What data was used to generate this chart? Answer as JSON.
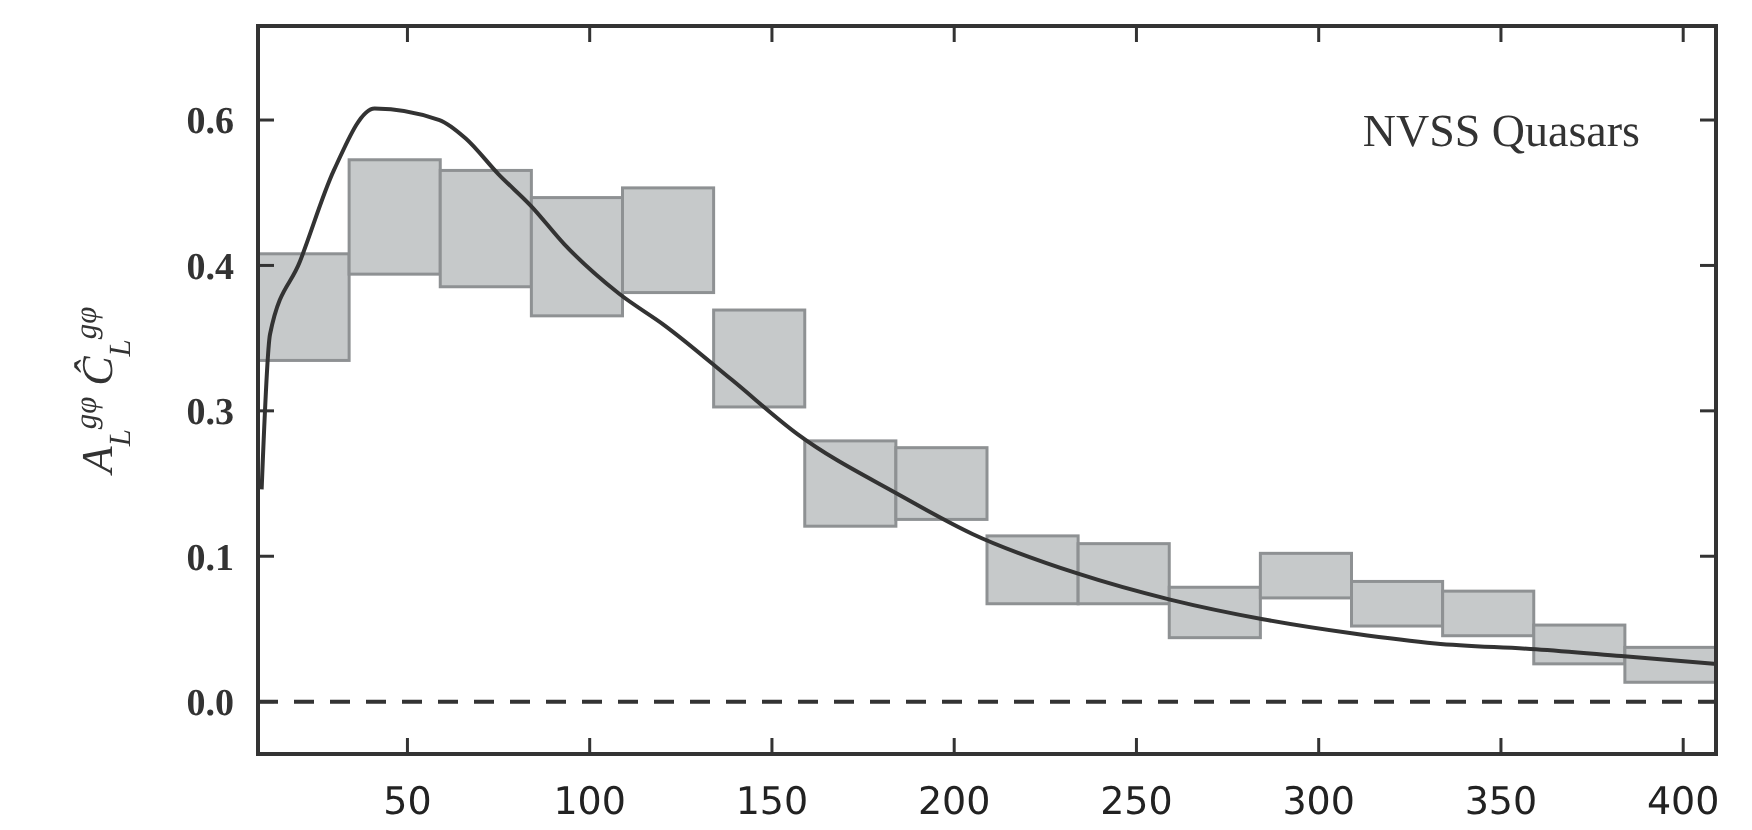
{
  "chart_data": {
    "type": "bar",
    "ylabel": "A$_{L}$$^{gφ}$ Ĉ$_{L}$$^{gφ}$",
    "xlim": [
      9,
      409
    ],
    "xticks": [
      50,
      100,
      150,
      200,
      250,
      300,
      350,
      400
    ],
    "ylim": [
      -0.054,
      0.697
    ],
    "yticks": [
      {
        "value": 0,
        "label": "0.0"
      },
      {
        "value": 0.15,
        "label": "0.1"
      },
      0.3,
      {
        "value": 0.45,
        "label": "0.4"
      },
      0.6
    ],
    "annotations": [
      "NVSS Quasars"
    ],
    "ref_lines": [
      {
        "axis": "y",
        "value": 0,
        "color": "#333333",
        "line_style": "dashed"
      }
    ],
    "series": [
      {
        "color": "#c6c9ca",
        "x": [
          21.5,
          46.5,
          71.5,
          96.5,
          121.5,
          146.5,
          171.5,
          196.5,
          221.5,
          246.5,
          271.5,
          296.5,
          321.5,
          346.5,
          371.5,
          396.5
        ],
        "base": [
          0.352,
          0.441,
          0.428,
          0.398,
          0.422,
          0.304,
          0.181,
          0.188,
          0.101,
          0.101,
          0.066,
          0.107,
          0.078,
          0.068,
          0.039,
          0.02
        ],
        "values": [
          0.11,
          0.118,
          0.12,
          0.122,
          0.108,
          0.1,
          0.088,
          0.074,
          0.07,
          0.062,
          0.052,
          0.046,
          0.046,
          0.046,
          0.04,
          0.036
        ]
      },
      {
        "type": "line",
        "color": "#333333",
        "line_style": "solid",
        "x": [
          10,
          12.3,
          20.5,
          29.8,
          41,
          58.8,
          66,
          75,
          84,
          93,
          108,
          120.6,
          139,
          157,
          184.6,
          205,
          234,
          259.5,
          284.7,
          310,
          332,
          359.6,
          383,
          409
        ],
        "values": [
          0.219,
          0.379,
          0.454,
          0.548,
          0.612,
          0.6,
          0.581,
          0.544,
          0.511,
          0.472,
          0.421,
          0.388,
          0.332,
          0.276,
          0.214,
          0.173,
          0.132,
          0.105,
          0.085,
          0.07,
          0.06,
          0.054,
          0.047,
          0.039
        ]
      }
    ]
  }
}
